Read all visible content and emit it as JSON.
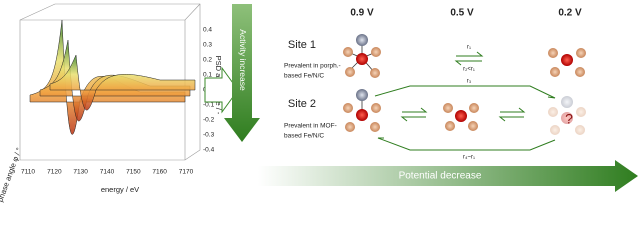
{
  "plot": {
    "x_label": "energy / eV",
    "y_label": "phase angle φ / °",
    "z_label": "PSD amplitude / -",
    "x_ticks": [
      "7110",
      "7120",
      "7130",
      "7140",
      "7150",
      "7160",
      "7170"
    ],
    "z_ticks": [
      "0.4",
      "0.3",
      "0.2",
      "0.1",
      "0.0",
      "-0.1",
      "-0.2",
      "-0.3",
      "-0.4"
    ]
  },
  "activity_arrow": "Activity increase",
  "potentials": [
    "0.9 V",
    "0.5 V",
    "0.2 V"
  ],
  "sites": [
    {
      "name": "Site 1",
      "note": [
        "Prevalent in porph.-",
        "based Fe/N/C"
      ]
    },
    {
      "name": "Site 2",
      "note": [
        "Prevalent in MOF-",
        "based Fe/N/C"
      ]
    }
  ],
  "rates": {
    "r1": "r₁",
    "r2": "r₂<r₁",
    "r3": "r₃",
    "r4": "r₄~r₁"
  },
  "unknown": "?",
  "potential_arrow": "Potential decrease"
}
